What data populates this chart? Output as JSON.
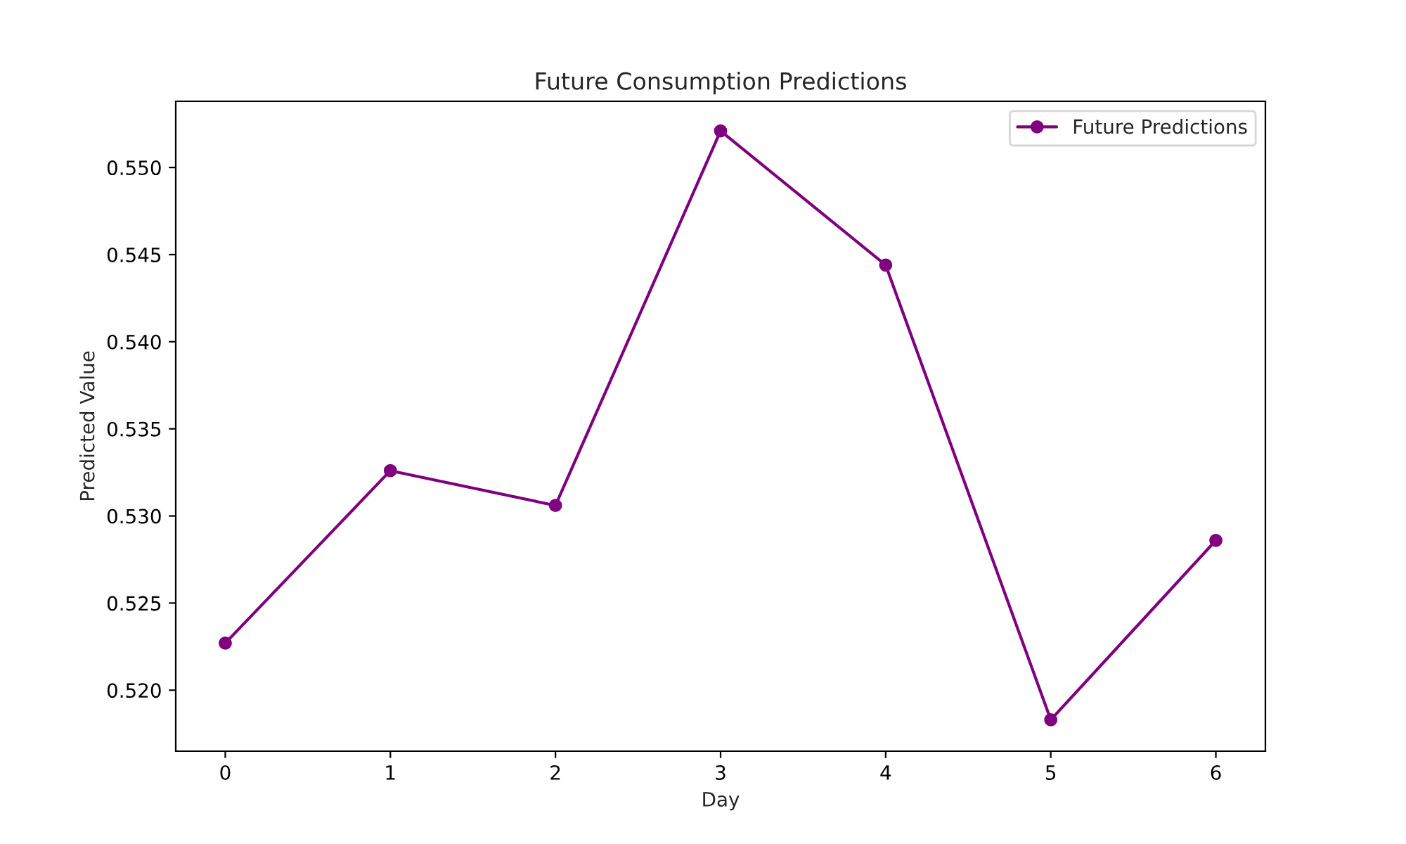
{
  "chart_data": {
    "type": "line",
    "title": "Future Consumption Predictions",
    "xlabel": "Day",
    "ylabel": "Predicted Value",
    "x": [
      0,
      1,
      2,
      3,
      4,
      5,
      6
    ],
    "series": [
      {
        "name": "Future Predictions",
        "color": "#800080",
        "values": [
          0.5227,
          0.5326,
          0.5306,
          0.5521,
          0.5444,
          0.5183,
          0.5286
        ]
      }
    ],
    "xlim": [
      -0.3,
      6.3
    ],
    "xticks": [
      0,
      1,
      2,
      3,
      4,
      5,
      6
    ],
    "ylim": [
      0.5165,
      0.5538
    ],
    "yticks": [
      {
        "value": 0.52,
        "label": "0.520"
      },
      {
        "value": 0.525,
        "label": "0.525"
      },
      {
        "value": 0.53,
        "label": "0.530"
      },
      {
        "value": 0.535,
        "label": "0.535"
      },
      {
        "value": 0.54,
        "label": "0.540"
      },
      {
        "value": 0.545,
        "label": "0.545"
      },
      {
        "value": 0.55,
        "label": "0.550"
      }
    ],
    "marker": "circle",
    "line_style": "solid",
    "legend": "top right",
    "grid": false
  }
}
